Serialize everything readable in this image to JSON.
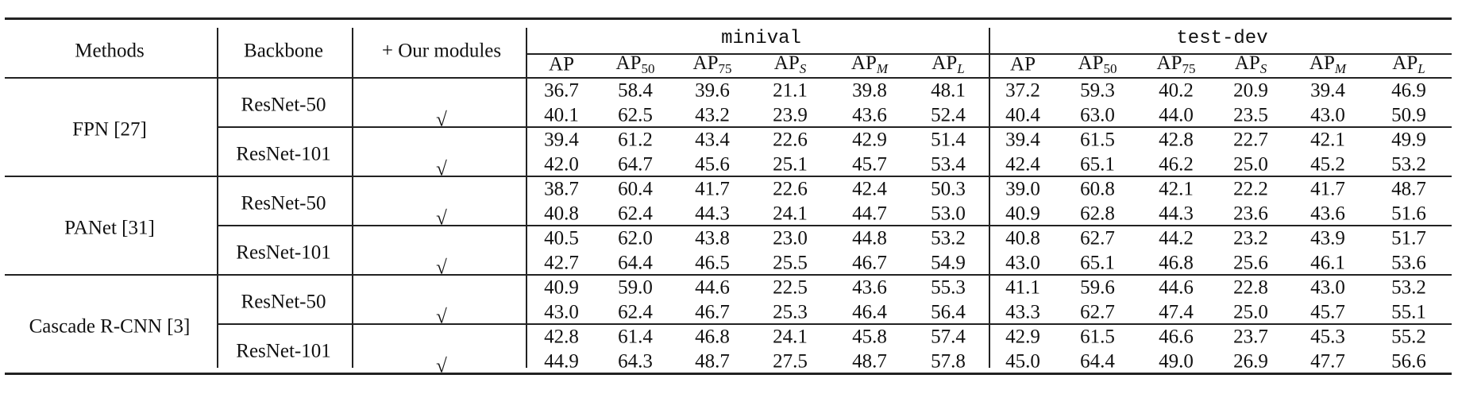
{
  "header": {
    "methods": "Methods",
    "backbone": "Backbone",
    "modules": "+ Our modules",
    "groups": [
      {
        "title": "minival",
        "columns": [
          {
            "text": "AP"
          },
          {
            "text": "AP",
            "sub": "50"
          },
          {
            "text": "AP",
            "sub": "75"
          },
          {
            "text": "AP",
            "sub": "S"
          },
          {
            "text": "AP",
            "sub": "M"
          },
          {
            "text": "AP",
            "sub": "L"
          }
        ]
      },
      {
        "title": "test-dev",
        "columns": [
          {
            "text": "AP"
          },
          {
            "text": "AP",
            "sub": "50"
          },
          {
            "text": "AP",
            "sub": "75"
          },
          {
            "text": "AP",
            "sub": "S"
          },
          {
            "text": "AP",
            "sub": "M"
          },
          {
            "text": "AP",
            "sub": "L"
          }
        ]
      }
    ]
  },
  "table": {
    "groups": [
      {
        "method": "FPN [27]",
        "backbones": [
          {
            "name": "ResNet-50",
            "rows": [
              {
                "values": [
                  "36.7",
                  "58.4",
                  "39.6",
                  "21.1",
                  "39.8",
                  "48.1",
                  "37.2",
                  "59.3",
                  "40.2",
                  "20.9",
                  "39.4",
                  "46.9"
                ]
              },
              {
                "check": "√",
                "values": [
                  "40.1",
                  "62.5",
                  "43.2",
                  "23.9",
                  "43.6",
                  "52.4",
                  "40.4",
                  "63.0",
                  "44.0",
                  "23.5",
                  "43.0",
                  "50.9"
                ]
              }
            ]
          },
          {
            "name": "ResNet-101",
            "rows": [
              {
                "values": [
                  "39.4",
                  "61.2",
                  "43.4",
                  "22.6",
                  "42.9",
                  "51.4",
                  "39.4",
                  "61.5",
                  "42.8",
                  "22.7",
                  "42.1",
                  "49.9"
                ]
              },
              {
                "check": "√",
                "values": [
                  "42.0",
                  "64.7",
                  "45.6",
                  "25.1",
                  "45.7",
                  "53.4",
                  "42.4",
                  "65.1",
                  "46.2",
                  "25.0",
                  "45.2",
                  "53.2"
                ]
              }
            ]
          }
        ]
      },
      {
        "method": "PANet [31]",
        "backbones": [
          {
            "name": "ResNet-50",
            "rows": [
              {
                "values": [
                  "38.7",
                  "60.4",
                  "41.7",
                  "22.6",
                  "42.4",
                  "50.3",
                  "39.0",
                  "60.8",
                  "42.1",
                  "22.2",
                  "41.7",
                  "48.7"
                ]
              },
              {
                "check": "√",
                "values": [
                  "40.8",
                  "62.4",
                  "44.3",
                  "24.1",
                  "44.7",
                  "53.0",
                  "40.9",
                  "62.8",
                  "44.3",
                  "23.6",
                  "43.6",
                  "51.6"
                ]
              }
            ]
          },
          {
            "name": "ResNet-101",
            "rows": [
              {
                "values": [
                  "40.5",
                  "62.0",
                  "43.8",
                  "23.0",
                  "44.8",
                  "53.2",
                  "40.8",
                  "62.7",
                  "44.2",
                  "23.2",
                  "43.9",
                  "51.7"
                ]
              },
              {
                "check": "√",
                "values": [
                  "42.7",
                  "64.4",
                  "46.5",
                  "25.5",
                  "46.7",
                  "54.9",
                  "43.0",
                  "65.1",
                  "46.8",
                  "25.6",
                  "46.1",
                  "53.6"
                ]
              }
            ]
          }
        ]
      },
      {
        "method": "Cascade R-CNN [3]",
        "backbones": [
          {
            "name": "ResNet-50",
            "rows": [
              {
                "values": [
                  "40.9",
                  "59.0",
                  "44.6",
                  "22.5",
                  "43.6",
                  "55.3",
                  "41.1",
                  "59.6",
                  "44.6",
                  "22.8",
                  "43.0",
                  "53.2"
                ]
              },
              {
                "check": "√",
                "values": [
                  "43.0",
                  "62.4",
                  "46.7",
                  "25.3",
                  "46.4",
                  "56.4",
                  "43.3",
                  "62.7",
                  "47.4",
                  "25.0",
                  "45.7",
                  "55.1"
                ]
              }
            ]
          },
          {
            "name": "ResNet-101",
            "rows": [
              {
                "values": [
                  "42.8",
                  "61.4",
                  "46.8",
                  "24.1",
                  "45.8",
                  "57.4",
                  "42.9",
                  "61.5",
                  "46.6",
                  "23.7",
                  "45.3",
                  "55.2"
                ]
              },
              {
                "check": "√",
                "values": [
                  "44.9",
                  "64.3",
                  "48.7",
                  "27.5",
                  "48.7",
                  "57.8",
                  "45.0",
                  "64.4",
                  "49.0",
                  "26.9",
                  "47.7",
                  "56.6"
                ]
              }
            ]
          }
        ]
      }
    ]
  }
}
